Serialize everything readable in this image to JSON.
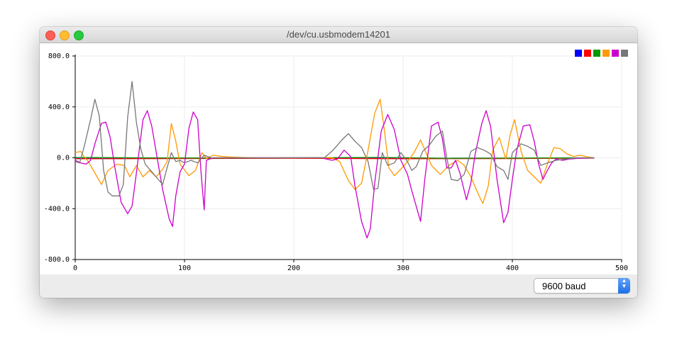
{
  "window": {
    "title": "/dev/cu.usbmodem14201"
  },
  "legend": {
    "colors": [
      "#0000ff",
      "#ff0000",
      "#009900",
      "#ff9900",
      "#cc00cc",
      "#777777"
    ]
  },
  "footer": {
    "baud_value": "9600 baud"
  },
  "icons": {
    "dropdown": "chevron-up-down-icon"
  },
  "chart_data": {
    "type": "line",
    "xlim": [
      0,
      500
    ],
    "ylim": [
      -800,
      800
    ],
    "x_ticks": [
      "0",
      "100",
      "200",
      "300",
      "400",
      "500"
    ],
    "y_ticks": [
      "800.0",
      "400.0",
      "0.0",
      "-400.0",
      "-800.0"
    ],
    "y_tick_values": [
      800,
      400,
      0,
      -400,
      -800
    ],
    "x_tick_values": [
      0,
      100,
      200,
      300,
      400,
      500
    ],
    "grid": true,
    "legend_position": "top-right",
    "series": [
      {
        "color": "#0000ff",
        "points": [
          [
            0,
            -5
          ],
          [
            100,
            -3
          ],
          [
            200,
            -2
          ],
          [
            300,
            -3
          ],
          [
            400,
            -4
          ],
          [
            475,
            -2
          ]
        ]
      },
      {
        "color": "#ff0000",
        "points": [
          [
            0,
            -8
          ],
          [
            100,
            -6
          ],
          [
            200,
            -4
          ],
          [
            300,
            -7
          ],
          [
            400,
            -6
          ],
          [
            475,
            -3
          ]
        ]
      },
      {
        "color": "#009900",
        "points": [
          [
            0,
            2
          ],
          [
            60,
            0
          ],
          [
            120,
            -2
          ],
          [
            200,
            0
          ],
          [
            280,
            3
          ],
          [
            340,
            -4
          ],
          [
            400,
            -2
          ],
          [
            475,
            0
          ]
        ]
      },
      {
        "color": "#ff9900",
        "points": [
          [
            0,
            40
          ],
          [
            5,
            50
          ],
          [
            8,
            10
          ],
          [
            12,
            -30
          ],
          [
            18,
            -120
          ],
          [
            24,
            -210
          ],
          [
            30,
            -100
          ],
          [
            38,
            -50
          ],
          [
            45,
            -60
          ],
          [
            50,
            -150
          ],
          [
            56,
            -60
          ],
          [
            62,
            -150
          ],
          [
            68,
            -100
          ],
          [
            74,
            -150
          ],
          [
            80,
            -90
          ],
          [
            84,
            -30
          ],
          [
            88,
            270
          ],
          [
            92,
            130
          ],
          [
            96,
            -50
          ],
          [
            104,
            -140
          ],
          [
            110,
            -100
          ],
          [
            116,
            40
          ],
          [
            120,
            -5
          ],
          [
            126,
            20
          ],
          [
            135,
            10
          ],
          [
            145,
            5
          ],
          [
            160,
            0
          ],
          [
            200,
            0
          ],
          [
            235,
            0
          ],
          [
            242,
            -30
          ],
          [
            250,
            -180
          ],
          [
            256,
            -250
          ],
          [
            262,
            -200
          ],
          [
            268,
            60
          ],
          [
            274,
            350
          ],
          [
            279,
            460
          ],
          [
            283,
            210
          ],
          [
            287,
            -80
          ],
          [
            292,
            -140
          ],
          [
            298,
            -90
          ],
          [
            304,
            -30
          ],
          [
            310,
            40
          ],
          [
            316,
            140
          ],
          [
            320,
            60
          ],
          [
            326,
            -60
          ],
          [
            334,
            -130
          ],
          [
            342,
            -60
          ],
          [
            350,
            -20
          ],
          [
            356,
            -60
          ],
          [
            362,
            -150
          ],
          [
            368,
            -270
          ],
          [
            373,
            -360
          ],
          [
            378,
            -220
          ],
          [
            382,
            60
          ],
          [
            388,
            160
          ],
          [
            394,
            -10
          ],
          [
            398,
            180
          ],
          [
            402,
            300
          ],
          [
            408,
            50
          ],
          [
            414,
            -100
          ],
          [
            420,
            -150
          ],
          [
            426,
            -200
          ],
          [
            432,
            -50
          ],
          [
            438,
            80
          ],
          [
            444,
            70
          ],
          [
            450,
            30
          ],
          [
            456,
            10
          ],
          [
            462,
            20
          ],
          [
            470,
            5
          ],
          [
            475,
            0
          ]
        ]
      },
      {
        "color": "#cc00cc",
        "points": [
          [
            0,
            -20
          ],
          [
            5,
            -40
          ],
          [
            10,
            -50
          ],
          [
            14,
            -20
          ],
          [
            18,
            110
          ],
          [
            24,
            270
          ],
          [
            28,
            280
          ],
          [
            32,
            160
          ],
          [
            36,
            -60
          ],
          [
            42,
            -350
          ],
          [
            48,
            -440
          ],
          [
            52,
            -380
          ],
          [
            56,
            -120
          ],
          [
            62,
            300
          ],
          [
            66,
            370
          ],
          [
            70,
            250
          ],
          [
            76,
            -50
          ],
          [
            80,
            -250
          ],
          [
            86,
            -480
          ],
          [
            89,
            -540
          ],
          [
            92,
            -300
          ],
          [
            96,
            -110
          ],
          [
            100,
            -50
          ],
          [
            104,
            230
          ],
          [
            108,
            360
          ],
          [
            112,
            300
          ],
          [
            115,
            -100
          ],
          [
            118,
            -410
          ],
          [
            120,
            -20
          ],
          [
            126,
            0
          ],
          [
            140,
            0
          ],
          [
            200,
            0
          ],
          [
            225,
            0
          ],
          [
            235,
            -20
          ],
          [
            240,
            -10
          ],
          [
            246,
            60
          ],
          [
            252,
            10
          ],
          [
            256,
            -220
          ],
          [
            262,
            -500
          ],
          [
            267,
            -630
          ],
          [
            270,
            -560
          ],
          [
            274,
            -200
          ],
          [
            280,
            210
          ],
          [
            286,
            340
          ],
          [
            292,
            220
          ],
          [
            298,
            -20
          ],
          [
            304,
            -130
          ],
          [
            308,
            -260
          ],
          [
            312,
            -380
          ],
          [
            316,
            -500
          ],
          [
            320,
            -160
          ],
          [
            326,
            250
          ],
          [
            332,
            280
          ],
          [
            336,
            150
          ],
          [
            340,
            -80
          ],
          [
            344,
            -80
          ],
          [
            348,
            -20
          ],
          [
            352,
            -120
          ],
          [
            358,
            -330
          ],
          [
            362,
            -200
          ],
          [
            366,
            30
          ],
          [
            372,
            270
          ],
          [
            376,
            370
          ],
          [
            380,
            250
          ],
          [
            386,
            -170
          ],
          [
            392,
            -510
          ],
          [
            396,
            -430
          ],
          [
            400,
            -170
          ],
          [
            404,
            60
          ],
          [
            410,
            250
          ],
          [
            416,
            260
          ],
          [
            420,
            130
          ],
          [
            424,
            -50
          ],
          [
            428,
            -170
          ],
          [
            432,
            -100
          ],
          [
            436,
            -40
          ],
          [
            440,
            -10
          ],
          [
            446,
            -20
          ],
          [
            452,
            -10
          ],
          [
            460,
            -5
          ],
          [
            475,
            0
          ]
        ]
      },
      {
        "color": "#777777",
        "points": [
          [
            0,
            -30
          ],
          [
            4,
            -40
          ],
          [
            8,
            80
          ],
          [
            14,
            300
          ],
          [
            18,
            460
          ],
          [
            22,
            330
          ],
          [
            26,
            -100
          ],
          [
            30,
            -270
          ],
          [
            34,
            -300
          ],
          [
            40,
            -300
          ],
          [
            44,
            -210
          ],
          [
            48,
            320
          ],
          [
            52,
            600
          ],
          [
            56,
            280
          ],
          [
            60,
            70
          ],
          [
            64,
            -50
          ],
          [
            70,
            -110
          ],
          [
            76,
            -170
          ],
          [
            80,
            -210
          ],
          [
            84,
            -80
          ],
          [
            88,
            40
          ],
          [
            92,
            -30
          ],
          [
            96,
            -20
          ],
          [
            100,
            -40
          ],
          [
            106,
            -20
          ],
          [
            112,
            -40
          ],
          [
            118,
            20
          ],
          [
            124,
            0
          ],
          [
            140,
            0
          ],
          [
            200,
            0
          ],
          [
            228,
            0
          ],
          [
            236,
            60
          ],
          [
            244,
            140
          ],
          [
            250,
            190
          ],
          [
            256,
            130
          ],
          [
            262,
            80
          ],
          [
            268,
            -30
          ],
          [
            273,
            -250
          ],
          [
            277,
            -240
          ],
          [
            281,
            40
          ],
          [
            286,
            -60
          ],
          [
            292,
            -40
          ],
          [
            298,
            40
          ],
          [
            304,
            -30
          ],
          [
            308,
            -100
          ],
          [
            312,
            -70
          ],
          [
            318,
            50
          ],
          [
            324,
            100
          ],
          [
            330,
            170
          ],
          [
            336,
            210
          ],
          [
            340,
            0
          ],
          [
            344,
            -170
          ],
          [
            350,
            -180
          ],
          [
            356,
            -130
          ],
          [
            362,
            50
          ],
          [
            368,
            80
          ],
          [
            374,
            60
          ],
          [
            380,
            30
          ],
          [
            386,
            -70
          ],
          [
            392,
            -100
          ],
          [
            396,
            -170
          ],
          [
            400,
            40
          ],
          [
            408,
            110
          ],
          [
            414,
            90
          ],
          [
            420,
            60
          ],
          [
            426,
            -60
          ],
          [
            432,
            -40
          ],
          [
            440,
            -20
          ],
          [
            448,
            -10
          ],
          [
            460,
            0
          ],
          [
            475,
            0
          ]
        ]
      }
    ]
  }
}
